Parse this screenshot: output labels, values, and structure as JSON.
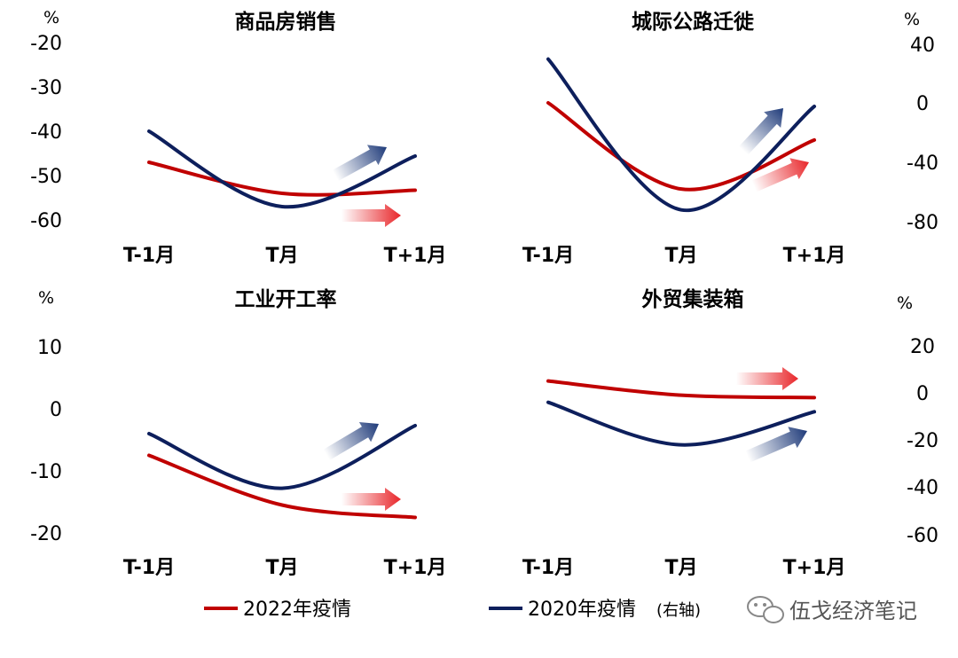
{
  "colors": {
    "series_2022": "#c00000",
    "series_2020": "#0d1f5c",
    "arrow_red": "#e8262a",
    "arrow_navy": "#1f3b7a"
  },
  "legend": {
    "items": [
      {
        "label": "2022年疫情",
        "note": ""
      },
      {
        "label": "2020年疫情",
        "note": "(右轴)"
      }
    ]
  },
  "watermark": {
    "text": "伍戈经济笔记",
    "icon": "wechat-icon"
  },
  "chart_data": [
    {
      "type": "line",
      "title": "商品房销售",
      "categories": [
        "T-1月",
        "T月",
        "T+1月"
      ],
      "y_unit": "%",
      "y_ticks": [
        "-20",
        "-30",
        "-40",
        "-50",
        "-60"
      ],
      "ylim": [
        -60,
        -20
      ],
      "series": [
        {
          "name": "2022年疫情",
          "values": [
            -47,
            -54,
            -53.3
          ]
        },
        {
          "name": "2020年疫情",
          "values": [
            -40,
            -57,
            -45.6
          ]
        }
      ]
    },
    {
      "type": "line",
      "title": "城际公路迁徙",
      "categories": [
        "T-1月",
        "T月",
        "T+1月"
      ],
      "y_unit": "%",
      "y_ticks": [
        "40",
        "0",
        "-40",
        "-80"
      ],
      "y2lim": [
        -80,
        40
      ],
      "series": [
        {
          "name": "2022年疫情",
          "values": [
            0,
            -58,
            -25
          ]
        },
        {
          "name": "2020年疫情",
          "values": [
            30,
            -72,
            -2
          ]
        }
      ]
    },
    {
      "type": "line",
      "title": "工业开工率",
      "categories": [
        "T-1月",
        "T月",
        "T+1月"
      ],
      "y_unit": "%",
      "y_ticks": [
        "10",
        "0",
        "-10",
        "-20"
      ],
      "ylim": [
        -20,
        10
      ],
      "series": [
        {
          "name": "2022年疫情",
          "values": [
            -7.5,
            -15.5,
            -17.5
          ]
        },
        {
          "name": "2020年疫情",
          "values": [
            -4,
            -12.8,
            -2.7
          ]
        }
      ]
    },
    {
      "type": "line",
      "title": "外贸集装箱",
      "categories": [
        "T-1月",
        "T月",
        "T+1月"
      ],
      "y_unit": "%",
      "y_ticks": [
        "20",
        "0",
        "-20",
        "-40",
        "-60"
      ],
      "y2lim": [
        -60,
        20
      ],
      "series": [
        {
          "name": "2022年疫情",
          "values": [
            5,
            -1,
            -2
          ]
        },
        {
          "name": "2020年疫情",
          "values": [
            -4,
            -22,
            -8
          ]
        }
      ]
    }
  ]
}
